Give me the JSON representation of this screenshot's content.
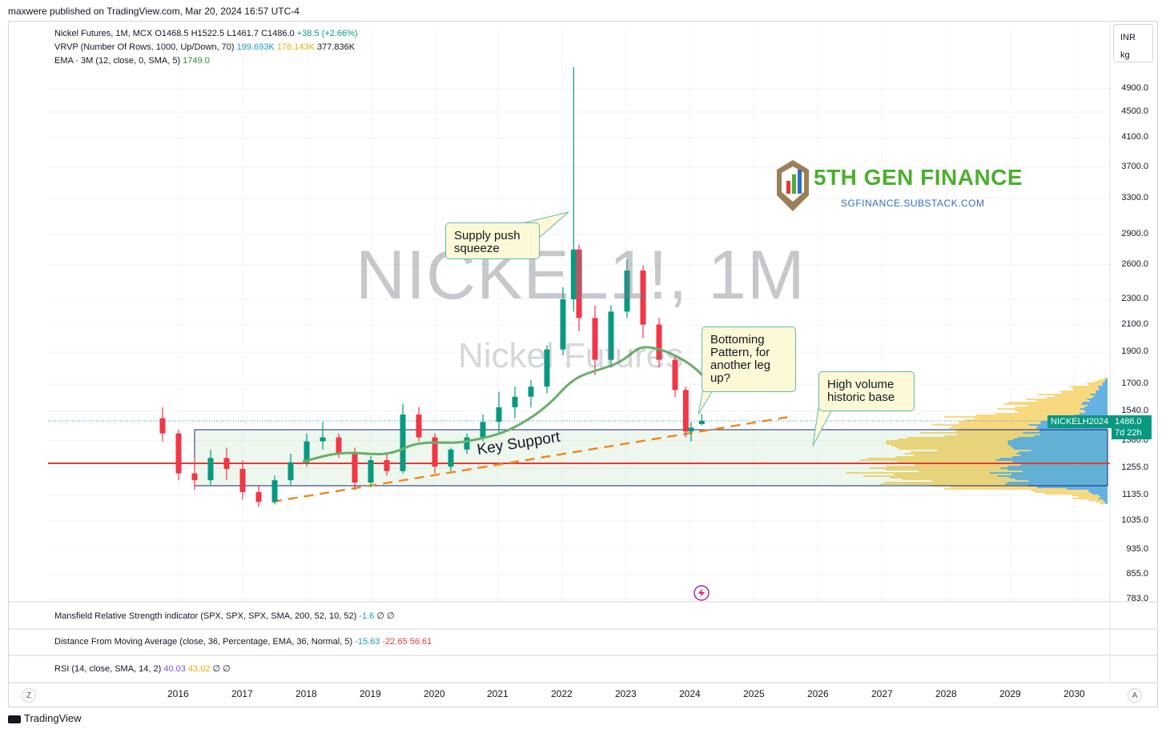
{
  "topbar": {
    "published": "maxwere published on TradingView.com, Mar 20, 2024 16:57 UTC-4"
  },
  "legend": {
    "symbol_line": {
      "label": "Nickel Futures, 1M, MCX",
      "o": "O1468.5",
      "h": "H1522.5",
      "l": "L1461.7",
      "c": "C1486.0",
      "chg": "+38.5 (+2.66%)"
    },
    "vrvp_line": {
      "label": "VRVP (Number Of Rows, 1000, Up/Down, 70)",
      "v1": "199.693K",
      "v2": "178.143K",
      "v3": "377.836K"
    },
    "ema_line": {
      "label": "EMA · 3M (12, close, 0, SMA, 5)",
      "v1": "1749.0"
    }
  },
  "watermark": {
    "symbol": "NICKEL1!, 1M",
    "description": "Nickel Futures"
  },
  "branding": {
    "name": "5TH GEN FINANCE",
    "url": "SGFINANCE.SUBSTACK.COM"
  },
  "callouts": {
    "supply": "Supply push squeeze",
    "bottoming": "Bottoming Pattern, for another leg up?",
    "high_volume": "High volume historic base",
    "key_support": "Key Support"
  },
  "unit_box": {
    "currency": "INR",
    "unit": "kg"
  },
  "price_axis": {
    "ticks": [
      "4900.0",
      "4500.0",
      "4100.0",
      "3700.0",
      "3300.0",
      "2900.0",
      "2600.0",
      "2300.0",
      "2100.0",
      "1900.0",
      "1700.0",
      "1540.0",
      "1380.0",
      "1255.0",
      "1135.0",
      "1035.0",
      "935.0",
      "855.0",
      "783.0"
    ],
    "price_label": {
      "symbol": "NICKELH2024",
      "price": "1486.0",
      "countdown": "7d 22h"
    }
  },
  "time_axis": {
    "ticks": [
      "2016",
      "2017",
      "2018",
      "2019",
      "2020",
      "2021",
      "2022",
      "2023",
      "2024",
      "2025",
      "2026",
      "2027",
      "2028",
      "2029",
      "2030"
    ],
    "left_btn": "Z",
    "right_btn": "A"
  },
  "panes": {
    "mansfield": {
      "label": "Mansfield Relative Strength indicator (SPX, SPX, SPX, SMA, 200, 52, 10, 52)",
      "v1": "-1.6",
      "v2": "∅ ∅"
    },
    "distance": {
      "label": "Distance From Moving Average (close, 36, Percentage, EMA, 36, Normal, 5)",
      "v1": "-15.63",
      "v2": "-22.65",
      "v3": "56.61"
    },
    "rsi": {
      "label": "RSI (14, close, SMA, 14, 2)",
      "v1": "40.03",
      "v2": "43.02",
      "v3": "∅ ∅"
    }
  },
  "footer": {
    "logo": "TradingView"
  },
  "colors": {
    "up": "#089981",
    "down": "#f23645",
    "ema": "#6aaf6a",
    "support_line": "#e53935",
    "trend": "#f08a24",
    "vp_up": "#f7c948",
    "vp_down": "#4aa3df"
  },
  "chart_data": {
    "type": "candlestick",
    "title": "NICKEL1!, 1M",
    "timeframe": "1M",
    "ylim": [
      783,
      5300
    ],
    "y_scale": "log",
    "candles_quarterly_approx": [
      {
        "t": "2015-10",
        "o": 1500,
        "h": 1560,
        "l": 1380,
        "c": 1420
      },
      {
        "t": "2016-01",
        "o": 1420,
        "h": 1440,
        "l": 1200,
        "c": 1230
      },
      {
        "t": "2016-04",
        "o": 1230,
        "h": 1300,
        "l": 1160,
        "c": 1200
      },
      {
        "t": "2016-07",
        "o": 1200,
        "h": 1340,
        "l": 1180,
        "c": 1300
      },
      {
        "t": "2016-10",
        "o": 1300,
        "h": 1350,
        "l": 1200,
        "c": 1250
      },
      {
        "t": "2017-01",
        "o": 1250,
        "h": 1290,
        "l": 1120,
        "c": 1150
      },
      {
        "t": "2017-04",
        "o": 1150,
        "h": 1180,
        "l": 1090,
        "c": 1110
      },
      {
        "t": "2017-07",
        "o": 1110,
        "h": 1220,
        "l": 1100,
        "c": 1200
      },
      {
        "t": "2017-10",
        "o": 1200,
        "h": 1320,
        "l": 1180,
        "c": 1280
      },
      {
        "t": "2018-01",
        "o": 1280,
        "h": 1420,
        "l": 1260,
        "c": 1380
      },
      {
        "t": "2018-04",
        "o": 1380,
        "h": 1480,
        "l": 1340,
        "c": 1400
      },
      {
        "t": "2018-07",
        "o": 1400,
        "h": 1420,
        "l": 1300,
        "c": 1320
      },
      {
        "t": "2018-10",
        "o": 1320,
        "h": 1350,
        "l": 1160,
        "c": 1190
      },
      {
        "t": "2019-01",
        "o": 1190,
        "h": 1310,
        "l": 1170,
        "c": 1290
      },
      {
        "t": "2019-04",
        "o": 1290,
        "h": 1320,
        "l": 1220,
        "c": 1240
      },
      {
        "t": "2019-07",
        "o": 1240,
        "h": 1580,
        "l": 1230,
        "c": 1520
      },
      {
        "t": "2019-10",
        "o": 1520,
        "h": 1560,
        "l": 1380,
        "c": 1400
      },
      {
        "t": "2020-01",
        "o": 1400,
        "h": 1420,
        "l": 1230,
        "c": 1260
      },
      {
        "t": "2020-04",
        "o": 1260,
        "h": 1350,
        "l": 1240,
        "c": 1340
      },
      {
        "t": "2020-07",
        "o": 1340,
        "h": 1420,
        "l": 1320,
        "c": 1400
      },
      {
        "t": "2020-10",
        "o": 1400,
        "h": 1520,
        "l": 1380,
        "c": 1480
      },
      {
        "t": "2021-01",
        "o": 1480,
        "h": 1650,
        "l": 1420,
        "c": 1560
      },
      {
        "t": "2021-04",
        "o": 1560,
        "h": 1680,
        "l": 1500,
        "c": 1620
      },
      {
        "t": "2021-07",
        "o": 1620,
        "h": 1720,
        "l": 1560,
        "c": 1680
      },
      {
        "t": "2021-10",
        "o": 1680,
        "h": 1950,
        "l": 1640,
        "c": 1920
      },
      {
        "t": "2022-01",
        "o": 1920,
        "h": 2400,
        "l": 1880,
        "c": 2300
      },
      {
        "t": "2022-03",
        "o": 2300,
        "h": 5300,
        "l": 2200,
        "c": 2750
      },
      {
        "t": "2022-04",
        "o": 2750,
        "h": 2800,
        "l": 2050,
        "c": 2150
      },
      {
        "t": "2022-07",
        "o": 2150,
        "h": 2250,
        "l": 1750,
        "c": 1850
      },
      {
        "t": "2022-10",
        "o": 1850,
        "h": 2250,
        "l": 1800,
        "c": 2200
      },
      {
        "t": "2023-01",
        "o": 2200,
        "h": 2650,
        "l": 2150,
        "c": 2550
      },
      {
        "t": "2023-04",
        "o": 2550,
        "h": 2600,
        "l": 2000,
        "c": 2100
      },
      {
        "t": "2023-07",
        "o": 2100,
        "h": 2150,
        "l": 1800,
        "c": 1850
      },
      {
        "t": "2023-10",
        "o": 1850,
        "h": 1880,
        "l": 1620,
        "c": 1660
      },
      {
        "t": "2023-12",
        "o": 1660,
        "h": 1680,
        "l": 1400,
        "c": 1430
      },
      {
        "t": "2024-01",
        "o": 1430,
        "h": 1480,
        "l": 1380,
        "c": 1450
      },
      {
        "t": "2024-03",
        "o": 1468.5,
        "h": 1522.5,
        "l": 1461.7,
        "c": 1486.0
      }
    ],
    "horizontal_line": 1255,
    "current_price": 1486.0
  }
}
